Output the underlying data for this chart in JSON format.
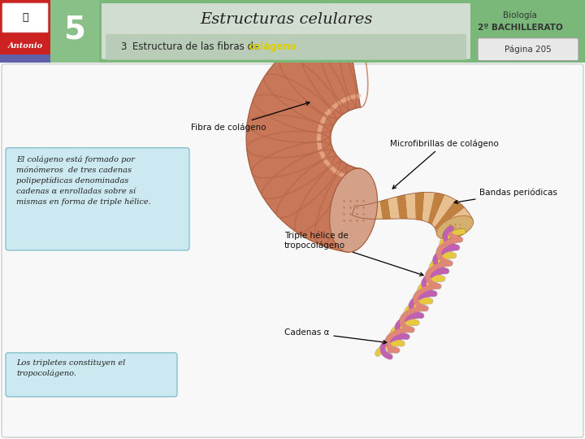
{
  "title": "Estructuras celulares",
  "subtitle_num": "5",
  "section_num": "3",
  "section_text": "Estructura de las fibras de ",
  "section_highlight": "colágeno",
  "bio_line1": "Biología",
  "bio_line2": "2º BACHILLERATO",
  "page_label": "Página 205",
  "label_fibra": "Fibra de colágeno",
  "label_micro": "Microfibrillas de colágeno",
  "label_bandas": "Bandas periódicas",
  "label_triple": "Triple hélice de\ntropocolágeno",
  "label_cadenas": "Cadenas α",
  "text_box1": "El colágeno está formado por\nmónómeros  de tres cadenas\npolipeptídicas denominadas\ncadenas α enrolladas sobre sí\nmismas en forma de triple hélice.",
  "text_box2": "Los tripletes constituyen el\ntropocolágeno.",
  "header_bg": "#7ab87a",
  "header_title_bg": "#d0ddd0",
  "header_section_bg": "#b8ccb8",
  "logo_bg": "#cc2222",
  "number_bg": "#7ab87a",
  "page_box_bg": "#e8e8e8",
  "text_box_bg": "#cce8f0",
  "body_bg": "#ffffff",
  "fiber_light": "#e8a888",
  "fiber_mid": "#c87858",
  "fiber_dark": "#a05838",
  "fiber_stripe_dark": "#b86848",
  "fiber_stripe_light": "#d09878",
  "fiber_cap": "#d4a088",
  "micro_light": "#e8c090",
  "micro_dark": "#c08040",
  "micro_cap": "#d4b070",
  "helix_yellow": "#e8c840",
  "helix_purple": "#c060b0",
  "helix_salmon": "#e08878"
}
